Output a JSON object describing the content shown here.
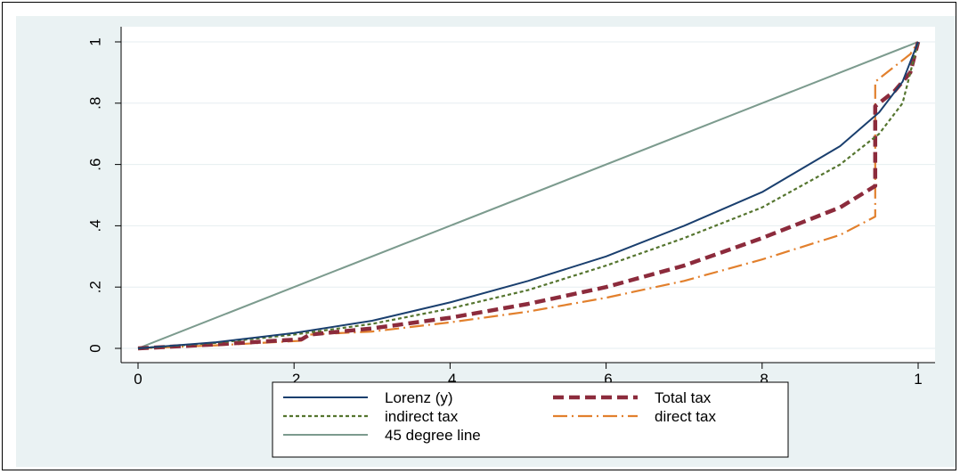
{
  "chart_data": {
    "type": "line",
    "title": "",
    "xlabel": "",
    "ylabel": "",
    "xlim": [
      0,
      1
    ],
    "ylim": [
      0,
      1
    ],
    "x_ticks": [
      0,
      0.2,
      0.4,
      0.6,
      0.8,
      1
    ],
    "x_tick_labels": [
      "0",
      ".2",
      ".4",
      ".6",
      ".8",
      "1"
    ],
    "y_ticks": [
      0,
      0.2,
      0.4,
      0.6,
      0.8,
      1
    ],
    "y_tick_labels": [
      "0",
      ".2",
      ".4",
      ".6",
      ".8",
      "1"
    ],
    "grid": true,
    "legend_position": "bottom",
    "series": [
      {
        "name": "Lorenz (y)",
        "color": "#1a3f6e",
        "style": "solid",
        "points": [
          [
            0,
            0
          ],
          [
            0.1,
            0.02
          ],
          [
            0.2,
            0.05
          ],
          [
            0.3,
            0.09
          ],
          [
            0.4,
            0.15
          ],
          [
            0.5,
            0.22
          ],
          [
            0.6,
            0.3
          ],
          [
            0.7,
            0.4
          ],
          [
            0.8,
            0.51
          ],
          [
            0.9,
            0.66
          ],
          [
            0.95,
            0.77
          ],
          [
            0.98,
            0.87
          ],
          [
            1,
            1
          ]
        ]
      },
      {
        "name": "indirect tax",
        "color": "#55752f",
        "style": "dotted",
        "points": [
          [
            0,
            0
          ],
          [
            0.1,
            0.018
          ],
          [
            0.2,
            0.045
          ],
          [
            0.3,
            0.08
          ],
          [
            0.4,
            0.13
          ],
          [
            0.5,
            0.19
          ],
          [
            0.6,
            0.27
          ],
          [
            0.7,
            0.36
          ],
          [
            0.8,
            0.46
          ],
          [
            0.9,
            0.6
          ],
          [
            0.95,
            0.7
          ],
          [
            0.98,
            0.8
          ],
          [
            1,
            1
          ]
        ]
      },
      {
        "name": "45 degree line",
        "color": "#7c9b8e",
        "style": "solid",
        "points": [
          [
            0,
            0
          ],
          [
            1,
            1
          ]
        ]
      },
      {
        "name": "Total tax",
        "color": "#8c2b3c",
        "style": "dashed",
        "points": [
          [
            0,
            0
          ],
          [
            0.1,
            0.013
          ],
          [
            0.21,
            0.03
          ],
          [
            0.22,
            0.045
          ],
          [
            0.3,
            0.065
          ],
          [
            0.4,
            0.1
          ],
          [
            0.5,
            0.145
          ],
          [
            0.6,
            0.2
          ],
          [
            0.7,
            0.27
          ],
          [
            0.8,
            0.36
          ],
          [
            0.9,
            0.46
          ],
          [
            0.945,
            0.53
          ],
          [
            0.945,
            0.79
          ],
          [
            0.97,
            0.84
          ],
          [
            0.99,
            0.9
          ],
          [
            1,
            1
          ]
        ]
      },
      {
        "name": "direct tax",
        "color": "#e2802d",
        "style": "dashdot",
        "points": [
          [
            0,
            0
          ],
          [
            0.1,
            0.01
          ],
          [
            0.21,
            0.025
          ],
          [
            0.22,
            0.045
          ],
          [
            0.3,
            0.055
          ],
          [
            0.4,
            0.085
          ],
          [
            0.5,
            0.12
          ],
          [
            0.6,
            0.165
          ],
          [
            0.7,
            0.22
          ],
          [
            0.8,
            0.29
          ],
          [
            0.9,
            0.37
          ],
          [
            0.945,
            0.43
          ],
          [
            0.945,
            0.87
          ],
          [
            0.97,
            0.92
          ],
          [
            0.99,
            0.96
          ],
          [
            1,
            1
          ]
        ]
      }
    ],
    "legend": {
      "rows": [
        [
          "Lorenz (y)",
          "Total tax"
        ],
        [
          "indirect tax",
          "direct tax"
        ],
        [
          "45 degree line"
        ]
      ]
    }
  }
}
